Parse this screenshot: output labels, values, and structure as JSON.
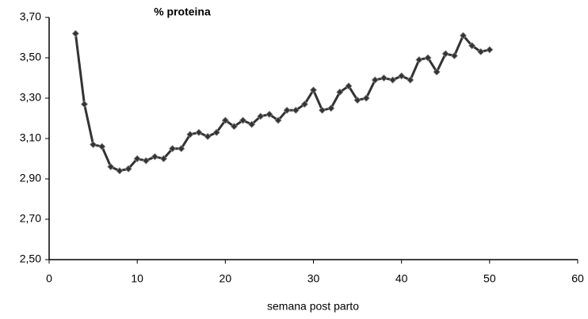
{
  "chart_data": {
    "type": "line",
    "title": "% proteina",
    "x_label": "semana post parto",
    "xlim": [
      0,
      60
    ],
    "xticks": [
      0,
      10,
      20,
      30,
      40,
      50,
      60
    ],
    "ylim": [
      2.5,
      3.7
    ],
    "yticks": [
      {
        "value": 2.5,
        "label": "2,50"
      },
      {
        "value": 2.7,
        "label": "2,70"
      },
      {
        "value": 2.9,
        "label": "2,90"
      },
      {
        "value": 3.1,
        "label": "3,10"
      },
      {
        "value": 3.3,
        "label": "3,30"
      },
      {
        "value": 3.5,
        "label": "3,50"
      },
      {
        "value": 3.7,
        "label": "3,70"
      }
    ],
    "x": [
      3,
      4,
      5,
      6,
      7,
      8,
      9,
      10,
      11,
      12,
      13,
      14,
      15,
      16,
      17,
      18,
      19,
      20,
      21,
      22,
      23,
      24,
      25,
      26,
      27,
      28,
      29,
      30,
      31,
      32,
      33,
      34,
      35,
      36,
      37,
      38,
      39,
      40,
      41,
      42,
      43,
      44,
      45,
      46,
      47,
      48,
      49,
      50
    ],
    "series": [
      {
        "color": "#333333",
        "values": [
          3.62,
          3.27,
          3.07,
          3.06,
          2.96,
          2.94,
          2.95,
          3.0,
          2.99,
          3.01,
          3.0,
          3.05,
          3.05,
          3.12,
          3.13,
          3.11,
          3.13,
          3.19,
          3.16,
          3.19,
          3.17,
          3.21,
          3.22,
          3.19,
          3.24,
          3.24,
          3.27,
          3.34,
          3.24,
          3.25,
          3.33,
          3.36,
          3.29,
          3.3,
          3.39,
          3.4,
          3.39,
          3.41,
          3.39,
          3.49,
          3.5,
          3.43,
          3.52,
          3.51,
          3.61,
          3.56,
          3.53,
          3.54
        ]
      }
    ]
  }
}
